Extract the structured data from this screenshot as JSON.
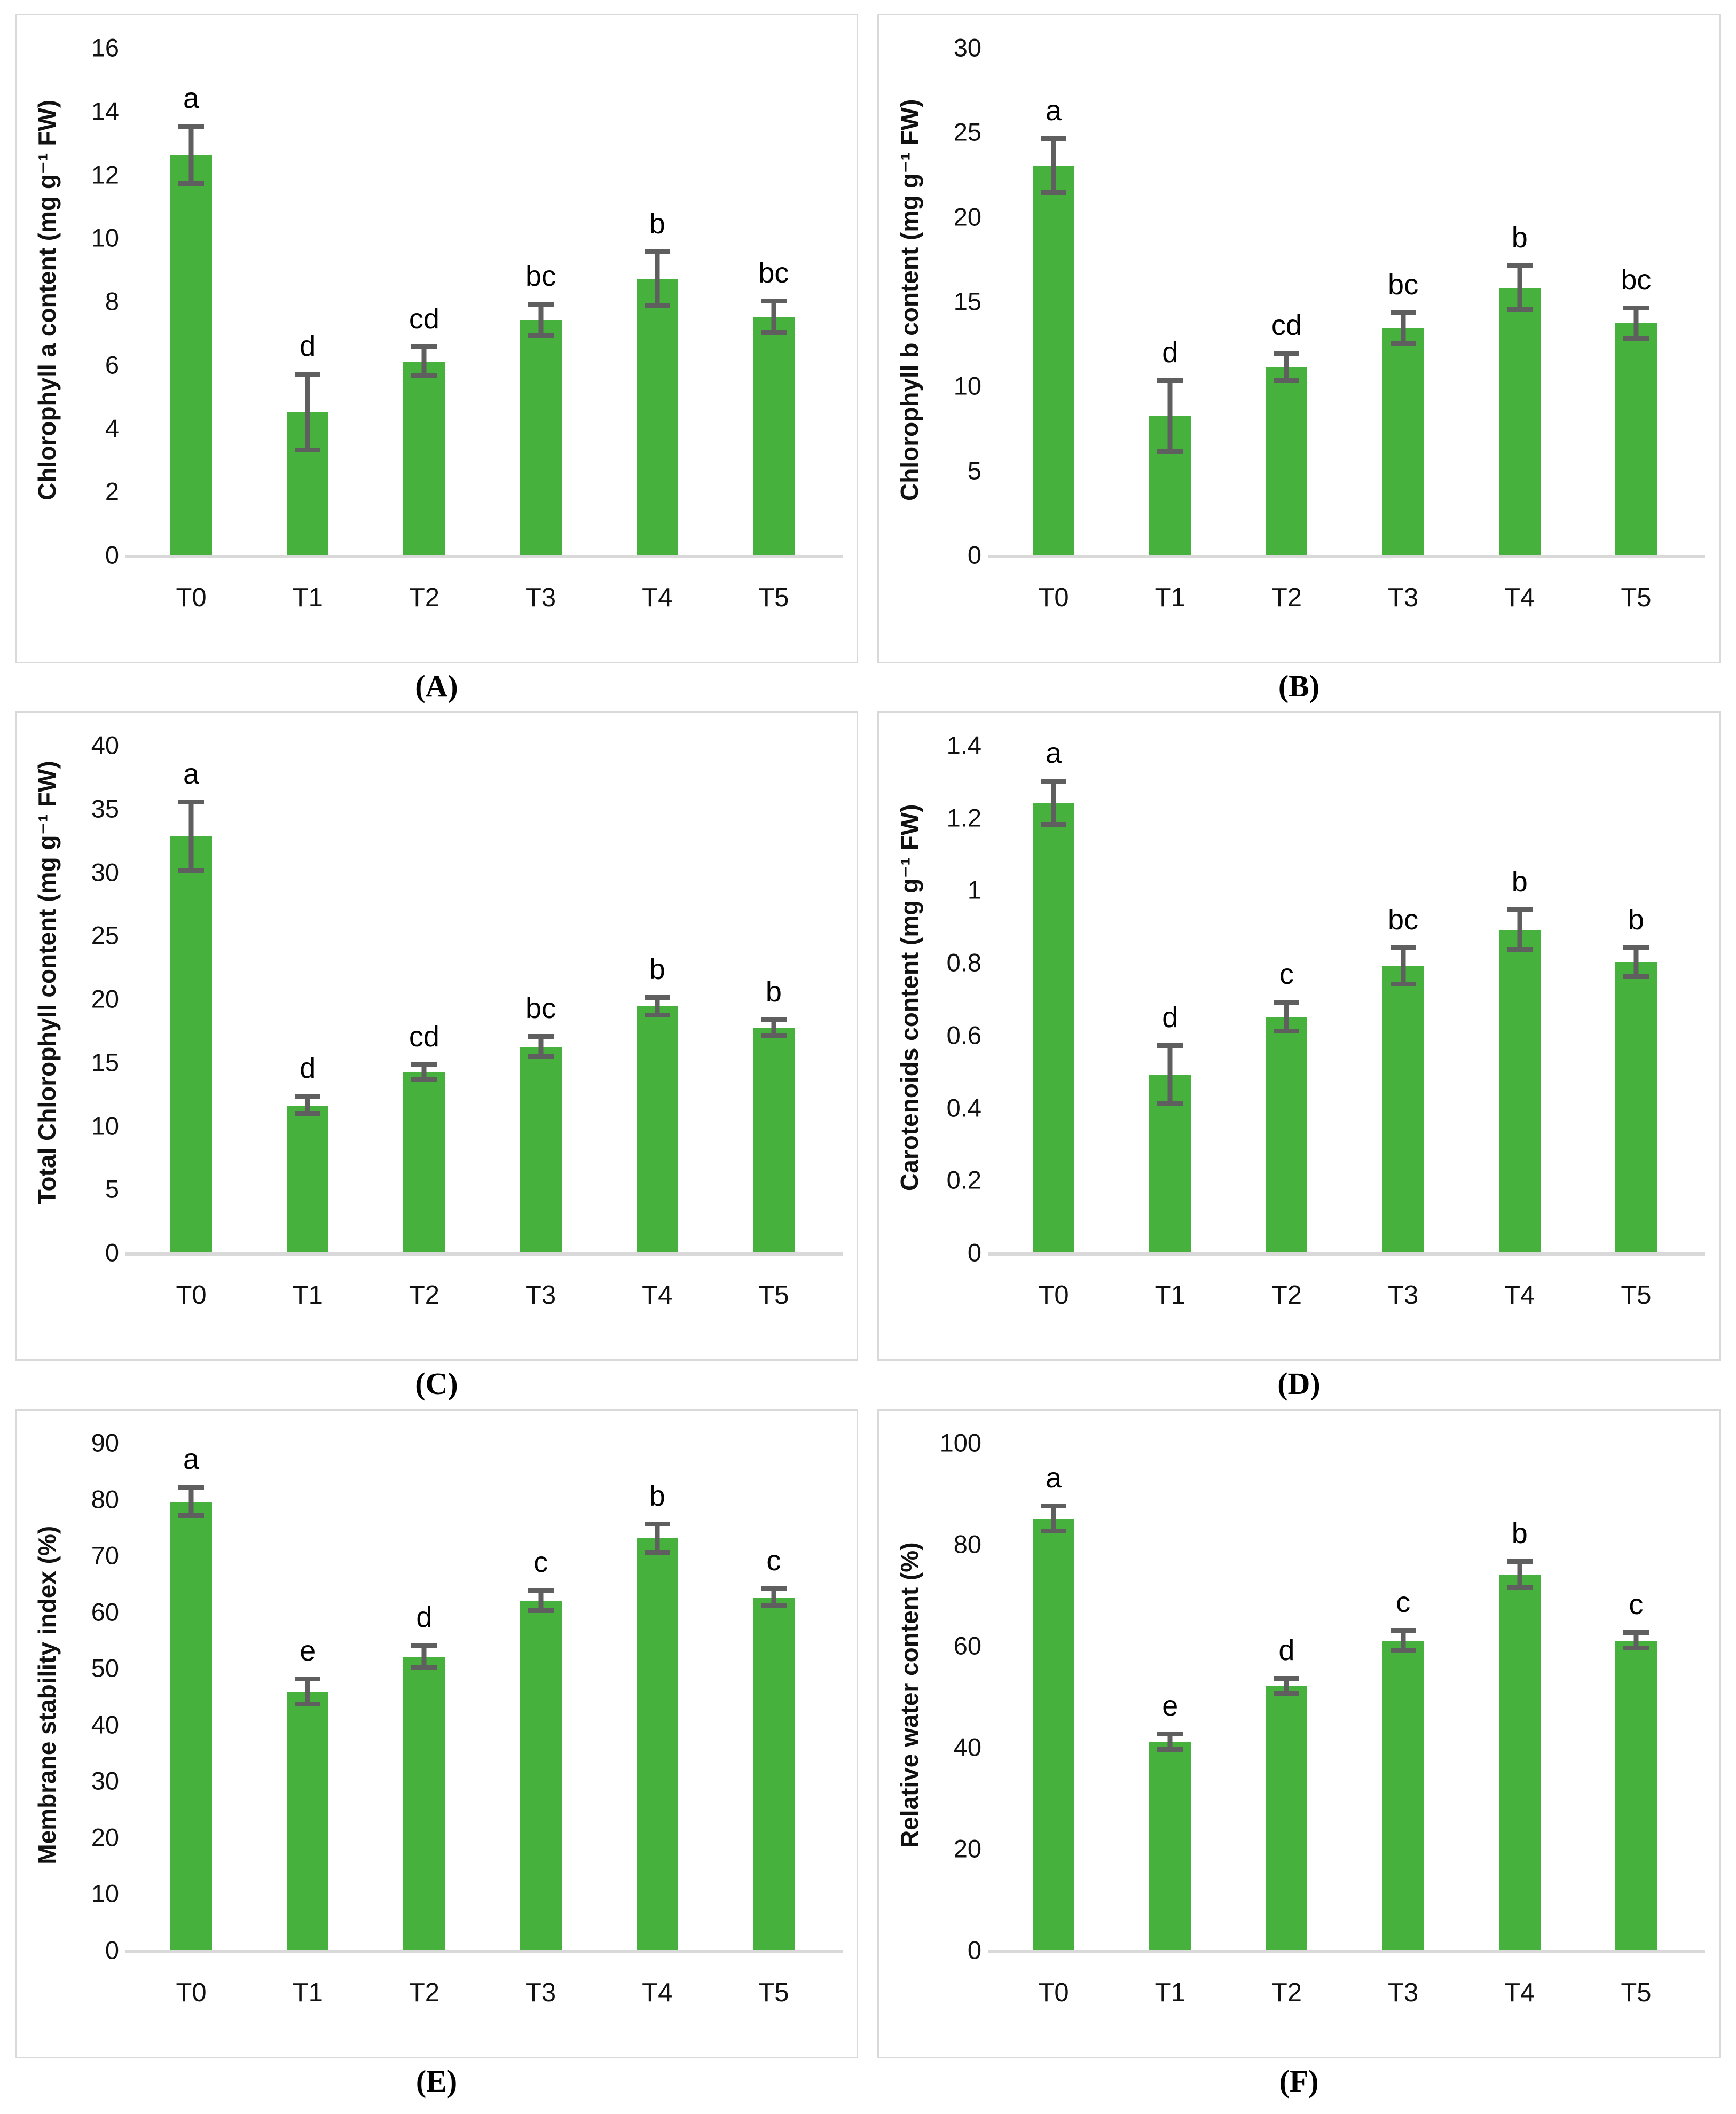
{
  "figure": {
    "bar_color": "#46b13c",
    "error_bar_color": "#5f5f5f",
    "axis_line_color": "#d9d9d9",
    "panel_border_color": "#d9d9d9",
    "text_color": "#000000"
  },
  "chart_data": [
    {
      "type": "bar",
      "panel": "(A)",
      "title": "",
      "xlabel": "",
      "ylabel": "Chlorophyll a content (mg g⁻¹ FW)",
      "categories": [
        "T0",
        "T1",
        "T2",
        "T3",
        "T4",
        "T5"
      ],
      "values": [
        12.6,
        4.5,
        6.1,
        7.4,
        8.7,
        7.5
      ],
      "errors": [
        0.9,
        1.2,
        0.45,
        0.5,
        0.85,
        0.5
      ],
      "letters": [
        "a",
        "d",
        "cd",
        "bc",
        "b",
        "bc"
      ],
      "ylim": [
        0,
        16
      ],
      "yticks": [
        "0",
        "2",
        "4",
        "6",
        "8",
        "10",
        "12",
        "14",
        "16"
      ],
      "grid": "off",
      "legend": "none"
    },
    {
      "type": "bar",
      "panel": "(B)",
      "title": "",
      "xlabel": "",
      "ylabel": "Chlorophyll b content (mg g⁻¹ FW)",
      "categories": [
        "T0",
        "T1",
        "T2",
        "T3",
        "T4",
        "T5"
      ],
      "values": [
        23.0,
        8.2,
        11.1,
        13.4,
        15.8,
        13.7
      ],
      "errors": [
        1.6,
        2.1,
        0.8,
        0.9,
        1.3,
        0.9
      ],
      "letters": [
        "a",
        "d",
        "cd",
        "bc",
        "b",
        "bc"
      ],
      "ylim": [
        0,
        30
      ],
      "yticks": [
        "0",
        "5",
        "10",
        "15",
        "20",
        "25",
        "30"
      ],
      "grid": "off",
      "legend": "none"
    },
    {
      "type": "bar",
      "panel": "(C)",
      "title": "",
      "xlabel": "",
      "ylabel": "Total Chlorophyll content (mg g⁻¹ FW)",
      "categories": [
        "T0",
        "T1",
        "T2",
        "T3",
        "T4",
        "T5"
      ],
      "values": [
        32.8,
        11.6,
        14.2,
        16.2,
        19.4,
        17.7
      ],
      "errors": [
        2.7,
        0.7,
        0.6,
        0.8,
        0.7,
        0.6
      ],
      "letters": [
        "a",
        "d",
        "cd",
        "bc",
        "b",
        "b"
      ],
      "ylim": [
        0,
        40
      ],
      "yticks": [
        "0",
        "5",
        "10",
        "15",
        "20",
        "25",
        "30",
        "35",
        "40"
      ],
      "grid": "off",
      "legend": "none"
    },
    {
      "type": "bar",
      "panel": "(D)",
      "title": "",
      "xlabel": "",
      "ylabel": "Carotenoids content (mg g⁻¹ FW)",
      "categories": [
        "T0",
        "T1",
        "T2",
        "T3",
        "T4",
        "T5"
      ],
      "values": [
        1.24,
        0.49,
        0.65,
        0.79,
        0.89,
        0.8
      ],
      "errors": [
        0.06,
        0.08,
        0.04,
        0.05,
        0.055,
        0.04
      ],
      "letters": [
        "a",
        "d",
        "c",
        "bc",
        "b",
        "b"
      ],
      "ylim": [
        0,
        1.4
      ],
      "yticks": [
        "0",
        "0.2",
        "0.4",
        "0.6",
        "0.8",
        "1",
        "1.2",
        "1.4"
      ],
      "grid": "off",
      "legend": "none"
    },
    {
      "type": "bar",
      "panel": "(E)",
      "title": "",
      "xlabel": "",
      "ylabel": "Membrane stability index (%)",
      "categories": [
        "T0",
        "T1",
        "T2",
        "T3",
        "T4",
        "T5"
      ],
      "values": [
        79.5,
        45.8,
        52.0,
        62.0,
        73.0,
        62.5
      ],
      "errors": [
        2.5,
        2.2,
        2.0,
        1.8,
        2.5,
        1.5
      ],
      "letters": [
        "a",
        "e",
        "d",
        "c",
        "b",
        "c"
      ],
      "ylim": [
        0,
        90
      ],
      "yticks": [
        "0",
        "10",
        "20",
        "30",
        "40",
        "50",
        "60",
        "70",
        "80",
        "90"
      ],
      "grid": "off",
      "legend": "none"
    },
    {
      "type": "bar",
      "panel": "(F)",
      "title": "",
      "xlabel": "",
      "ylabel": "Relative water content (%)",
      "categories": [
        "T0",
        "T1",
        "T2",
        "T3",
        "T4",
        "T5"
      ],
      "values": [
        85.0,
        41.0,
        52.0,
        61.0,
        74.0,
        61.0
      ],
      "errors": [
        2.5,
        1.5,
        1.5,
        2.0,
        2.5,
        1.5
      ],
      "letters": [
        "a",
        "e",
        "d",
        "c",
        "b",
        "c"
      ],
      "ylim": [
        0,
        100
      ],
      "yticks": [
        "0",
        "20",
        "40",
        "60",
        "80",
        "100"
      ],
      "grid": "off",
      "legend": "none"
    }
  ]
}
